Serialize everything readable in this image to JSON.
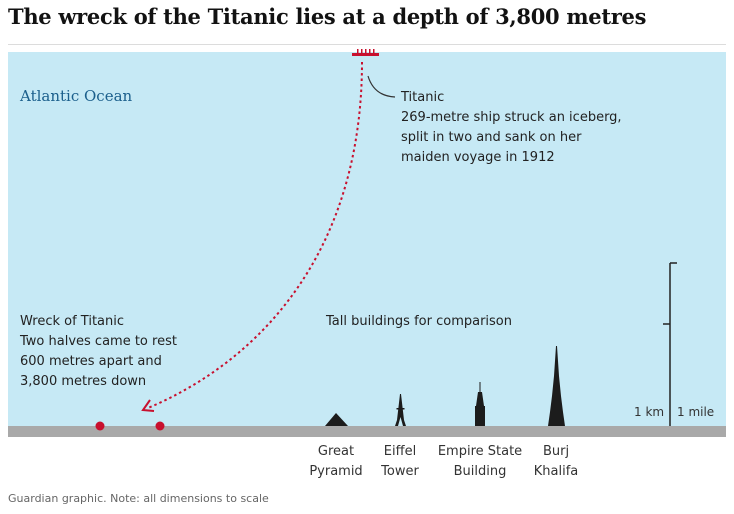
{
  "title": "The wreck of the Titanic lies at a depth of 3,800 metres",
  "ocean_label": "Atlantic Ocean",
  "titanic_callout": {
    "heading": "Titanic",
    "lines": [
      "269-metre ship struck an iceberg,",
      "split in two and sank on her",
      "maiden voyage in 1912"
    ]
  },
  "wreck_callout": {
    "heading": "Wreck of Titanic",
    "lines": [
      "Two halves came to rest",
      "600 metres apart and",
      "3,800 metres down"
    ]
  },
  "comparison_label": "Tall buildings for comparison",
  "buildings": [
    {
      "line1": "Great",
      "line2": "Pyramid"
    },
    {
      "line1": "Eiffel",
      "line2": "Tower"
    },
    {
      "line1": "Empire State",
      "line2": "Building"
    },
    {
      "line1": "Burj",
      "line2": "Khalifa"
    }
  ],
  "scale": {
    "km_label": "1 km",
    "mile_label": "1 mile"
  },
  "footnote": "Guardian graphic. Note: all dimensions to scale",
  "colors": {
    "ocean": "#c6e9f5",
    "seabed": "#a9a9a9",
    "accent_red": "#c8102e",
    "building": "#1c1c1c",
    "ocean_label": "#1b5f8c"
  }
}
